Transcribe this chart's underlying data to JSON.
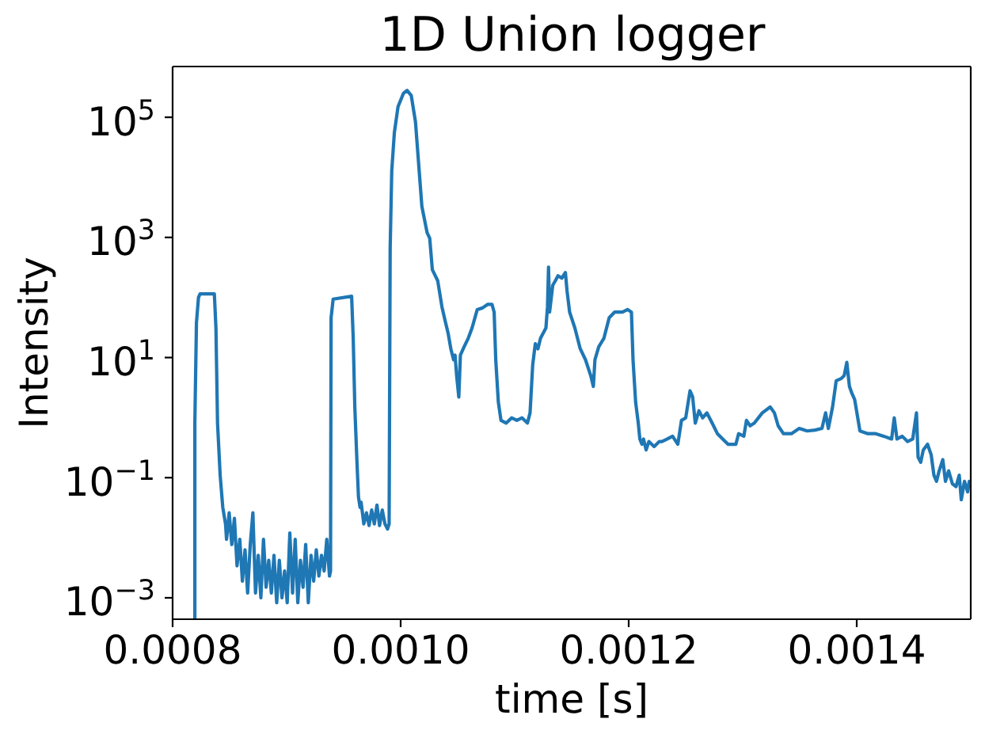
{
  "chart_data": {
    "type": "line",
    "title": "1D Union logger",
    "xlabel": "time [s]",
    "ylabel": "Intensity",
    "log": "y",
    "xlim": [
      0.0008,
      0.0015
    ],
    "xticks": [
      0.0008,
      {
        "value": 0.001,
        "label": "0.0010"
      },
      0.0012,
      0.0014
    ],
    "ylim": [
      0.00044,
      700000
    ],
    "yticks": [
      {
        "value": 0.001,
        "label": "10$^{−3}$"
      },
      {
        "value": 0.1,
        "label": "10$^{−1}$"
      },
      {
        "value": 10,
        "label": "10$^{1}$"
      },
      {
        "value": 1000,
        "label": "10$^{3}$"
      },
      {
        "value": 100000,
        "label": "10$^{5}$"
      }
    ],
    "x": [
      0.0008195,
      0.0008195,
      0.0008209,
      0.0008227,
      0.0008241,
      0.0008366,
      0.000838,
      0.0008394,
      0.0008417,
      0.000844,
      0.0008464,
      0.0008473,
      0.0008496,
      0.0008519,
      0.0008542,
      0.0008565,
      0.0008589,
      0.0008612,
      0.0008635,
      0.0008658,
      0.0008681,
      0.0008704,
      0.0008727,
      0.0008751,
      0.0008774,
      0.0008797,
      0.000882,
      0.0008843,
      0.0008866,
      0.0008889,
      0.0008913,
      0.0008936,
      0.0008959,
      0.0008982,
      0.0009005,
      0.0009028,
      0.0009052,
      0.0009075,
      0.0009098,
      0.0009121,
      0.0009144,
      0.0009167,
      0.000919,
      0.0009214,
      0.0009237,
      0.000926,
      0.0009283,
      0.0009306,
      0.0009329,
      0.0009352,
      0.0009376,
      0.0009385,
      0.000939,
      0.0009408,
      0.000957,
      0.0009584,
      0.0009598,
      0.0009616,
      0.000963,
      0.0009644,
      0.0009653,
      0.0009677,
      0.00097,
      0.0009723,
      0.0009746,
      0.0009769,
      0.0009792,
      0.0009815,
      0.0009839,
      0.0009862,
      0.0009885,
      0.0009899,
      0.0009908,
      0.0009922,
      0.0009945,
      0.0009977,
      0.0010024,
      0.0010056,
      0.0010093,
      0.001013,
      0.0010186,
      0.0010232,
      0.0010255,
      0.0010278,
      0.0010325,
      0.0010362,
      0.0010394,
      0.0010417,
      0.001044,
      0.0010464,
      0.0010477,
      0.0010491,
      0.001051,
      0.0010524,
      0.0010556,
      0.0010593,
      0.0010626,
      0.0010672,
      0.0010718,
      0.0010764,
      0.0010801,
      0.001082,
      0.0010834,
      0.0010857,
      0.001088,
      0.0010926,
      0.0010973,
      0.0011019,
      0.0011065,
      0.0011112,
      0.0011135,
      0.0011158,
      0.0011181,
      0.0011204,
      0.0011227,
      0.0011274,
      0.0011288,
      0.0011297,
      0.0011306,
      0.0011334,
      0.0011357,
      0.001138,
      0.0011413,
      0.0011445,
      0.0011459,
      0.0011482,
      0.0011528,
      0.0011575,
      0.0011621,
      0.0011667,
      0.001169,
      0.0011704,
      0.0011737,
      0.0011783,
      0.0011829,
      0.0011876,
      0.0011945,
      0.0011991,
      0.0012024,
      0.0012038,
      0.0012061,
      0.0012084,
      0.0012098,
      0.0012116,
      0.001213,
      0.0012153,
      0.0012177,
      0.0012223,
      0.0012269,
      0.0012292,
      0.0012338,
      0.0012385,
      0.0012431,
      0.0012463,
      0.00125,
      0.0012538,
      0.0012561,
      0.0012584,
      0.0012616,
      0.0012649,
      0.0012686,
      0.0012732,
      0.0012778,
      0.0012825,
      0.0012871,
      0.001294,
      0.0012964,
      0.001301,
      0.0013033,
      0.0013065,
      0.0013102,
      0.0013172,
      0.0013241,
      0.0013278,
      0.0013311,
      0.0013357,
      0.0013427,
      0.0013496,
      0.0013565,
      0.0013635,
      0.0013695,
      0.0013727,
      0.0013751,
      0.0013788,
      0.001382,
      0.0013866,
      0.001389,
      0.0013913,
      0.0013936,
      0.0013959,
      0.0013982,
      0.0014028,
      0.0014098,
      0.0014167,
      0.0014237,
      0.0014306,
      0.0014329,
      0.0014353,
      0.0014399,
      0.0014445,
      0.0014491,
      0.0014524,
      0.0014538,
      0.0014561,
      0.0014584,
      0.0014621,
      0.0014653,
      0.0014677,
      0.00147,
      0.0014723,
      0.0014755,
      0.0014778,
      0.0014806,
      0.0014839,
      0.0014871,
      0.0014899,
      0.0014917,
      0.0014945,
      0.0014973,
      0.0014987
    ],
    "series": [
      {
        "color": "#1f77b4",
        "values": [
          0.00044,
          0.81,
          38,
          100,
          115,
          115,
          31,
          0.81,
          0.11,
          0.032,
          0.017,
          0.0094,
          0.026,
          0.0077,
          0.021,
          0.0034,
          0.0094,
          0.0019,
          0.0063,
          0.0012,
          0.0077,
          0.026,
          0.0012,
          0.0051,
          0.001,
          0.0094,
          0.0015,
          0.0042,
          0.0012,
          0.0051,
          0.00083,
          0.0042,
          0.001,
          0.0028,
          0.00083,
          0.012,
          0.0012,
          0.0094,
          0.00083,
          0.0042,
          0.0015,
          0.0077,
          0.00083,
          0.0051,
          0.0019,
          0.0063,
          0.0023,
          0.0051,
          0.0028,
          0.0094,
          0.0023,
          0.0028,
          46,
          94,
          105,
          21,
          1.5,
          0.2,
          0.048,
          0.032,
          0.039,
          0.017,
          0.026,
          0.016,
          0.029,
          0.017,
          0.035,
          0.016,
          0.029,
          0.017,
          0.014,
          0.017,
          650,
          13000,
          56000,
          150000,
          250000,
          280000,
          230000,
          84000,
          3300,
          1200,
          970,
          290,
          190,
          70,
          38,
          25,
          14,
          9.2,
          11,
          5,
          2.2,
          11,
          15,
          21,
          31,
          63,
          67,
          77,
          77,
          57,
          9.2,
          1.8,
          0.9,
          0.81,
          0.99,
          0.9,
          0.99,
          0.81,
          1.2,
          7.5,
          17,
          14,
          21,
          31,
          70,
          320,
          57,
          160,
          190,
          230,
          210,
          260,
          130,
          57,
          31,
          14,
          9.2,
          5,
          3.3,
          9.2,
          15,
          21,
          46,
          57,
          57,
          63,
          57,
          9.2,
          1.8,
          0.81,
          0.44,
          0.36,
          0.44,
          0.29,
          0.4,
          0.33,
          0.4,
          0.4,
          0.44,
          0.49,
          0.36,
          0.9,
          0.99,
          2.8,
          2.2,
          0.81,
          1.3,
          0.99,
          1.2,
          0.81,
          0.54,
          0.44,
          0.36,
          0.36,
          0.54,
          0.49,
          0.9,
          0.73,
          0.81,
          1.2,
          1.5,
          1.2,
          0.73,
          0.54,
          0.54,
          0.66,
          0.6,
          0.62,
          0.66,
          1.2,
          0.66,
          1.5,
          4.1,
          4.5,
          5,
          8.3,
          3.3,
          2.5,
          2,
          0.6,
          0.54,
          0.54,
          0.49,
          0.44,
          0.99,
          0.44,
          0.49,
          0.4,
          0.44,
          1.2,
          0.22,
          0.18,
          0.29,
          0.36,
          0.24,
          0.11,
          0.087,
          0.13,
          0.2,
          0.087,
          0.13,
          0.079,
          0.071,
          0.11,
          0.043,
          0.087,
          0.058,
          0.087
        ]
      }
    ]
  }
}
